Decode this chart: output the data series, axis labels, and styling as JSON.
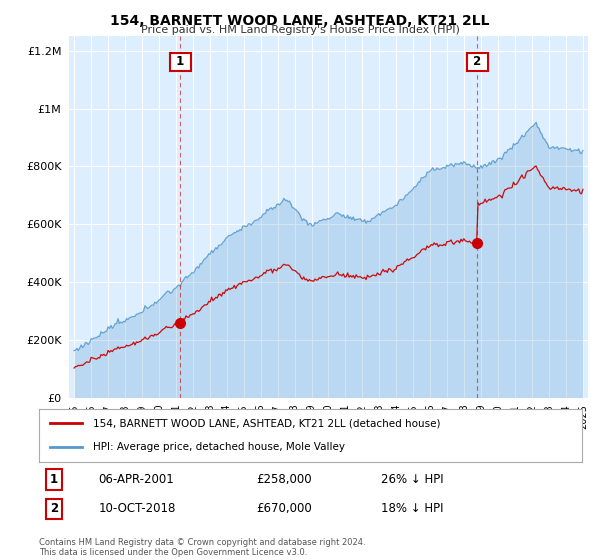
{
  "title": "154, BARNETT WOOD LANE, ASHTEAD, KT21 2LL",
  "subtitle": "Price paid vs. HM Land Registry's House Price Index (HPI)",
  "legend_label1": "154, BARNETT WOOD LANE, ASHTEAD, KT21 2LL (detached house)",
  "legend_label2": "HPI: Average price, detached house, Mole Valley",
  "annotation1_date": "06-APR-2001",
  "annotation1_price": "£258,000",
  "annotation1_hpi": "26% ↓ HPI",
  "annotation2_date": "10-OCT-2018",
  "annotation2_price": "£670,000",
  "annotation2_hpi": "18% ↓ HPI",
  "footnote": "Contains HM Land Registry data © Crown copyright and database right 2024.\nThis data is licensed under the Open Government Licence v3.0.",
  "line_color_price": "#cc0000",
  "line_color_hpi": "#5599cc",
  "annotation_box_color": "#cc0000",
  "vline_color": "#cc0000",
  "background_color": "#ffffff",
  "plot_bg_color": "#ddeeff",
  "ylim": [
    0,
    1250000
  ],
  "xlim_start": 1994.7,
  "xlim_end": 2025.3,
  "sale1_year": 2001.27,
  "sale1_price": 258000,
  "sale2_year": 2018.77,
  "sale2_price": 670000
}
